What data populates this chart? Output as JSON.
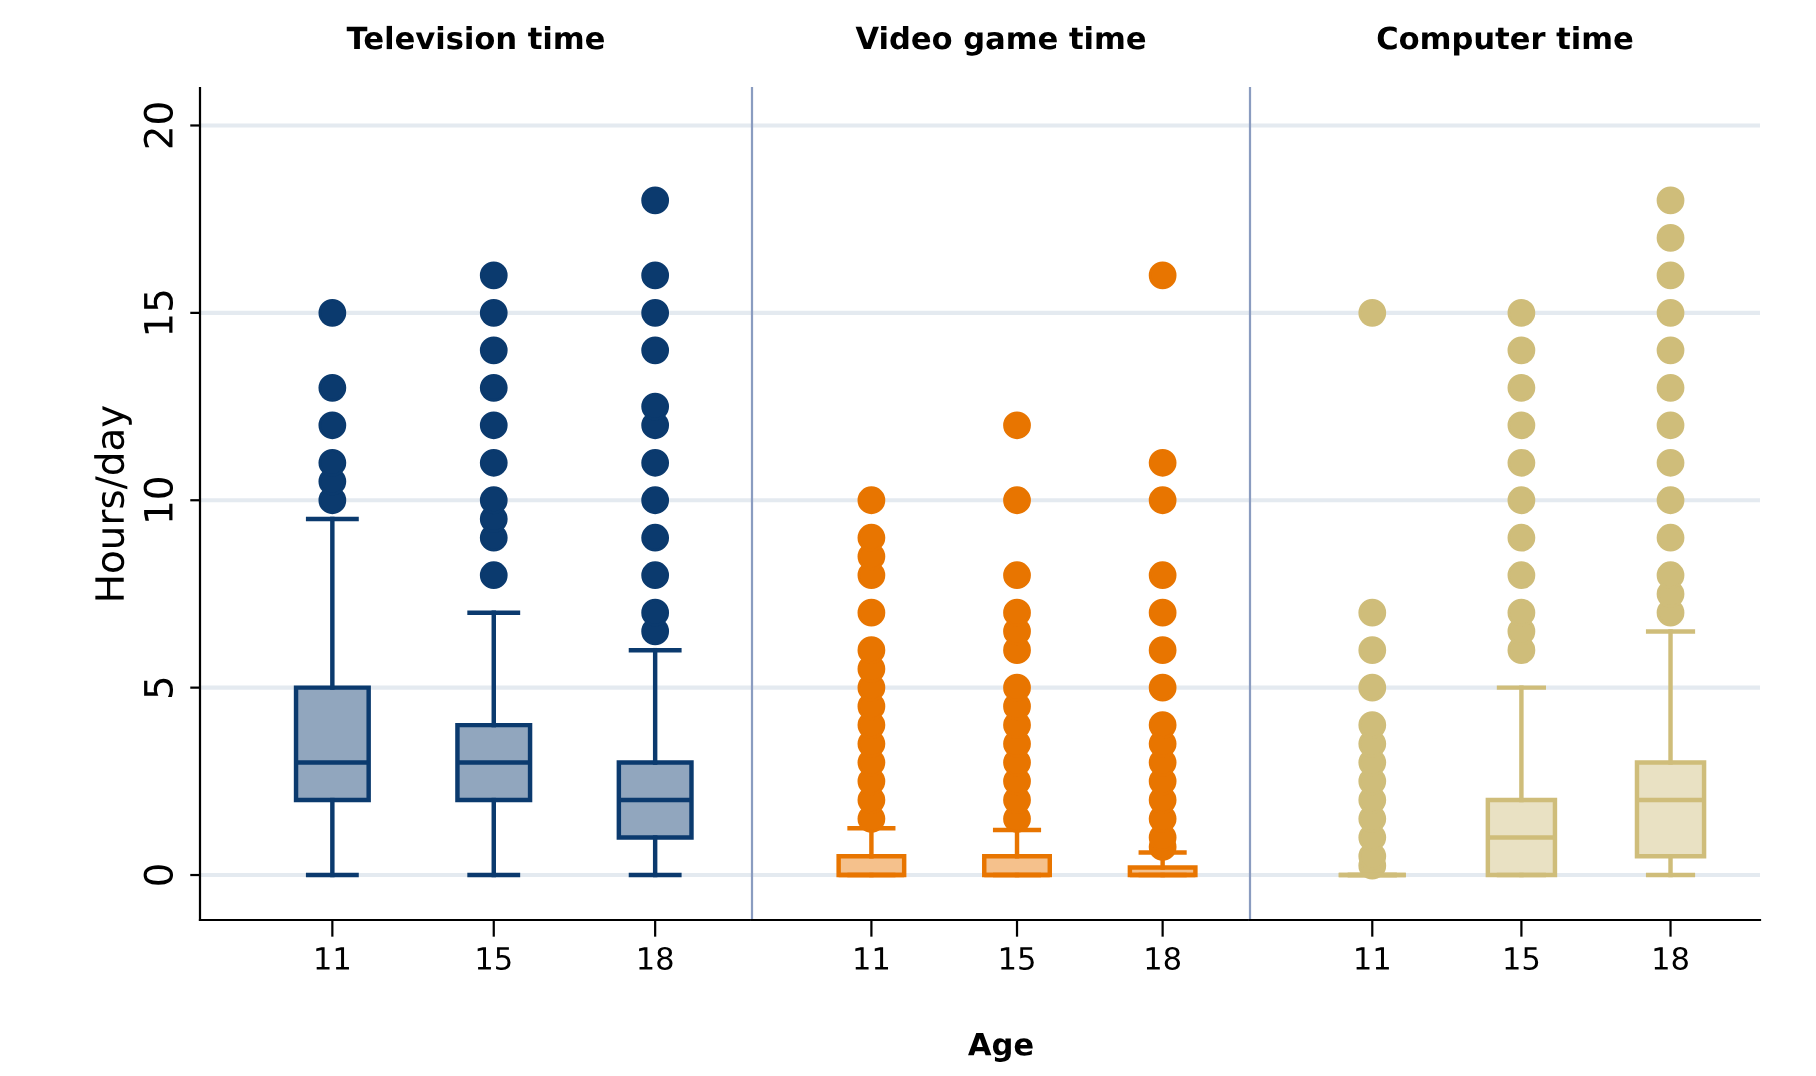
{
  "chart_data": [
    {
      "type": "box",
      "title": "Television time",
      "ylabel": "Hours/day",
      "categories": [
        "11",
        "15",
        "18"
      ],
      "ylim": [
        -1.2,
        21
      ],
      "yticks": [
        0,
        5,
        10,
        15,
        20
      ],
      "grid": "y",
      "color": "#0b3a6e",
      "boxes": [
        {
          "low": 0,
          "q1": 2,
          "median": 3,
          "q3": 5,
          "high": 9.5,
          "outliers": [
            10,
            10.5,
            11,
            12,
            13,
            15
          ]
        },
        {
          "low": 0,
          "q1": 2,
          "median": 3,
          "q3": 4,
          "high": 7,
          "outliers": [
            8,
            9,
            9.5,
            10,
            11,
            12,
            13,
            14,
            15,
            16
          ]
        },
        {
          "low": 0,
          "q1": 1,
          "median": 2,
          "q3": 3,
          "high": 6,
          "outliers": [
            6.5,
            7,
            8,
            9,
            10,
            11,
            12,
            12.5,
            14,
            15,
            16,
            18
          ]
        }
      ]
    },
    {
      "type": "box",
      "title": "Video game time",
      "xlabel": "Age",
      "categories": [
        "11",
        "15",
        "18"
      ],
      "ylim": [
        -1.2,
        21
      ],
      "yticks": [
        0,
        5,
        10,
        15,
        20
      ],
      "grid": "y",
      "tick_labels": "x",
      "color": "#e87500",
      "boxes": [
        {
          "low": 0,
          "q1": 0,
          "median": 0,
          "q3": 0.5,
          "high": 1.25,
          "outliers": [
            1.5,
            2,
            2.5,
            3,
            3.5,
            4,
            4.5,
            5,
            5.5,
            6,
            7,
            8,
            8.5,
            9,
            10
          ]
        },
        {
          "low": 0,
          "q1": 0,
          "median": 0,
          "q3": 0.5,
          "high": 1.2,
          "outliers": [
            1.5,
            2,
            2.5,
            3,
            3.5,
            4,
            4.5,
            5,
            6,
            6.5,
            7,
            8,
            10,
            12
          ]
        },
        {
          "low": 0,
          "q1": 0,
          "median": 0,
          "q3": 0.2,
          "high": 0.6,
          "outliers": [
            0.75,
            1,
            1.5,
            2,
            2.5,
            3,
            3.5,
            4,
            5,
            6,
            7,
            8,
            10,
            11,
            16
          ]
        }
      ]
    },
    {
      "type": "box",
      "title": "Computer time",
      "categories": [
        "11",
        "15",
        "18"
      ],
      "ylim": [
        -1.2,
        21
      ],
      "yticks": [
        0,
        5,
        10,
        15,
        20
      ],
      "grid": "y",
      "tick_labels": "x",
      "color": "#cfbd7a",
      "boxes": [
        {
          "low": 0,
          "q1": 0,
          "median": 0,
          "q3": 0,
          "high": 0,
          "outliers": [
            0.25,
            0.5,
            1,
            1.5,
            2,
            2.5,
            3,
            3.5,
            4,
            5,
            6,
            7,
            15
          ]
        },
        {
          "low": 0,
          "q1": 0,
          "median": 1,
          "q3": 2,
          "high": 5,
          "outliers": [
            6,
            6.5,
            7,
            8,
            9,
            10,
            11,
            12,
            13,
            14,
            15
          ]
        },
        {
          "low": 0,
          "q1": 0.5,
          "median": 2,
          "q3": 3,
          "high": 6.5,
          "outliers": [
            7,
            7.5,
            8,
            9,
            10,
            11,
            12,
            13,
            14,
            15,
            16,
            17,
            18
          ]
        }
      ]
    }
  ]
}
